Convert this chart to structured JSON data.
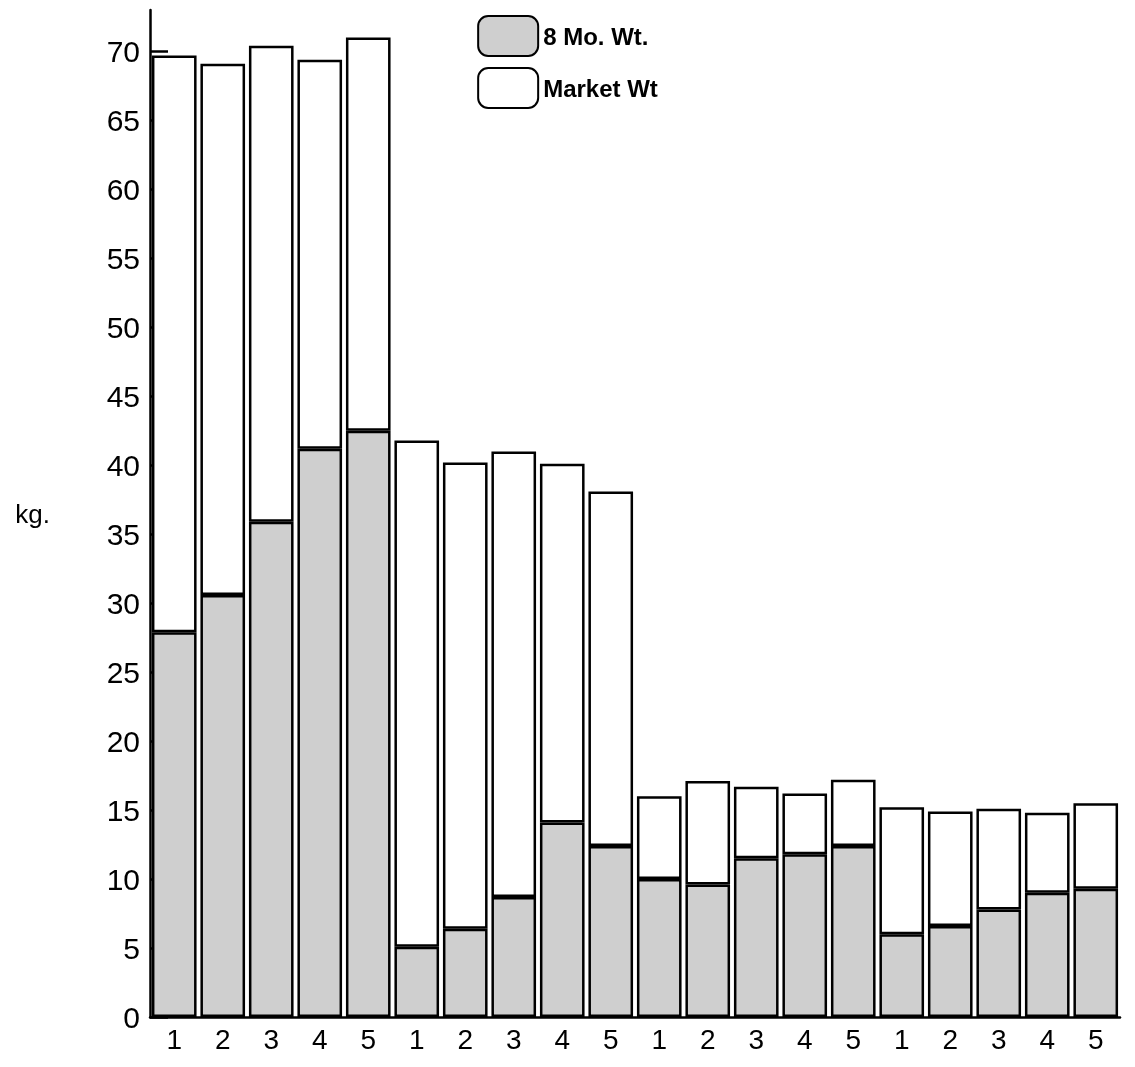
{
  "chart_data": {
    "type": "bar",
    "ylabel": "kg.",
    "categories": [
      "1",
      "2",
      "3",
      "4",
      "5",
      "1",
      "2",
      "3",
      "4",
      "5",
      "1",
      "2",
      "3",
      "4",
      "5",
      "1",
      "2",
      "3",
      "4",
      "5"
    ],
    "stacked": true,
    "series": [
      {
        "name": "8 Mo. Wt.",
        "color": "#cfcfcf",
        "values": [
          27.9,
          30.6,
          35.9,
          41.2,
          42.5,
          5.1,
          6.4,
          8.7,
          14.1,
          12.4,
          10.0,
          9.6,
          11.5,
          11.8,
          12.4,
          6.0,
          6.6,
          7.8,
          9.0,
          9.3
        ]
      },
      {
        "name": "Market Wt",
        "color": "#ffffff",
        "values": [
          41.8,
          38.5,
          34.5,
          28.2,
          28.5,
          36.7,
          33.8,
          32.3,
          26.0,
          25.7,
          6.0,
          7.5,
          5.2,
          4.4,
          4.8,
          9.2,
          8.3,
          7.3,
          5.8,
          6.2
        ]
      }
    ],
    "ylim": [
      0,
      73
    ],
    "yticks": [
      0,
      5,
      10,
      15,
      20,
      25,
      30,
      35,
      40,
      45,
      50,
      55,
      60,
      65,
      70
    ],
    "grid": false,
    "legend": "top"
  }
}
